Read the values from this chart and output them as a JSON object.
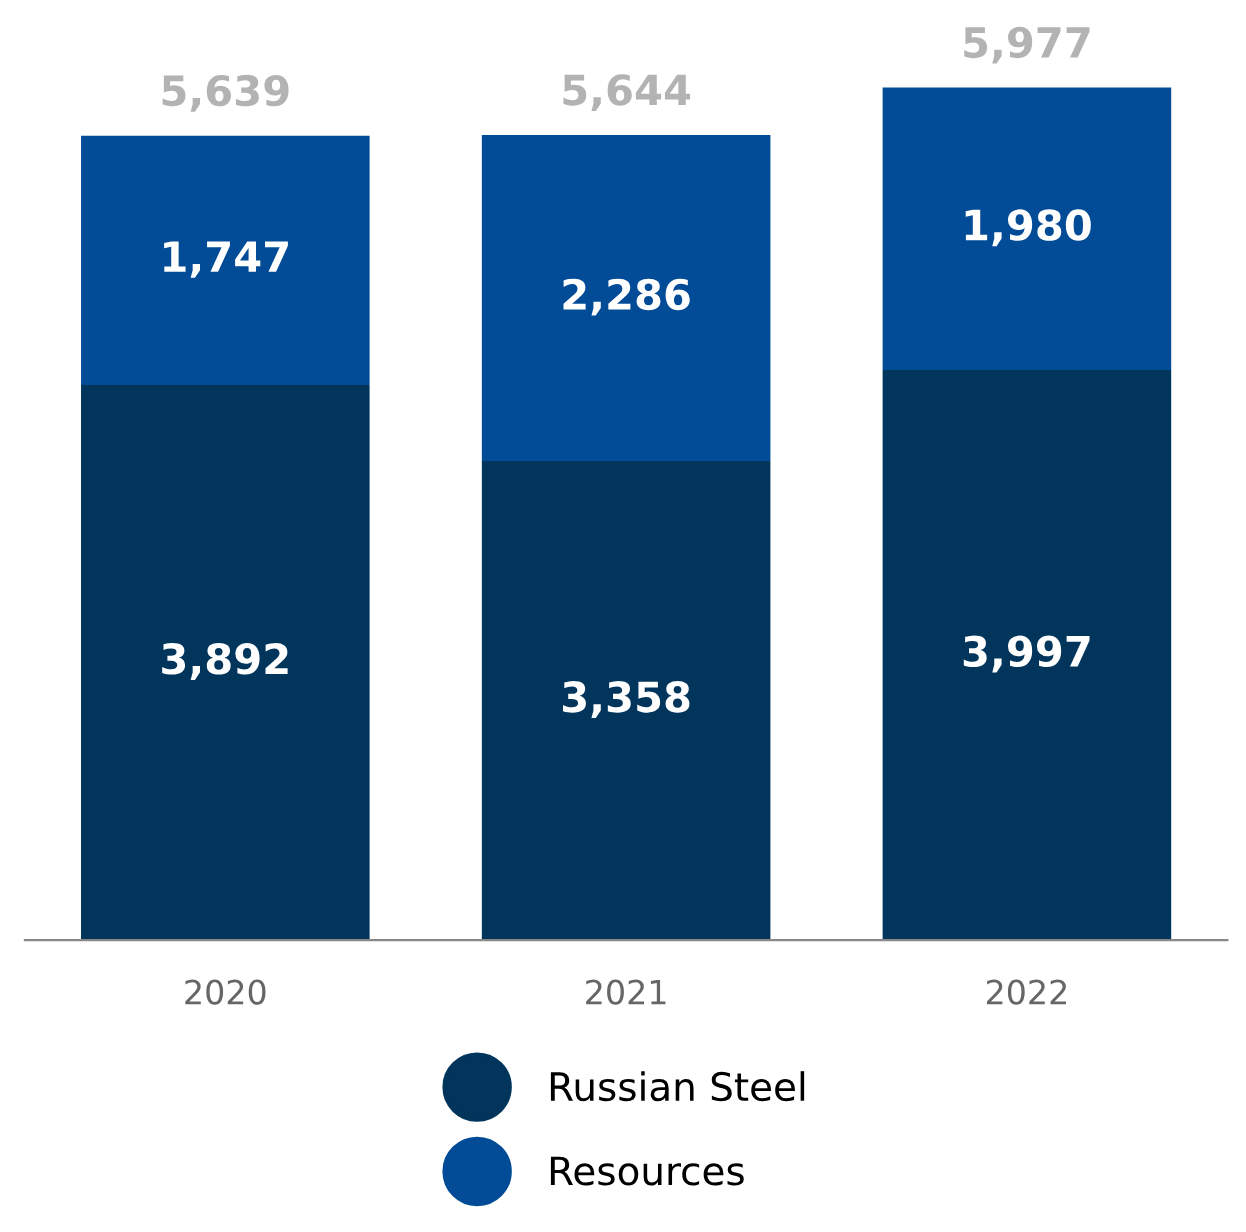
{
  "chart_data": {
    "type": "bar",
    "stacked": true,
    "categories": [
      "2020",
      "2021",
      "2022"
    ],
    "series": [
      {
        "name": "Russian Steel",
        "color": "#01355c",
        "values": [
          3892,
          3358,
          3997
        ],
        "value_labels": [
          "3,892",
          "3,358",
          "3,997"
        ]
      },
      {
        "name": "Resources",
        "color": "#024b97",
        "values": [
          1747,
          2286,
          1980
        ],
        "value_labels": [
          "1,747",
          "2,286",
          "1,980"
        ]
      }
    ],
    "totals": [
      "5,639",
      "5,644",
      "5,977"
    ],
    "legend": "bottom",
    "grid": false
  }
}
